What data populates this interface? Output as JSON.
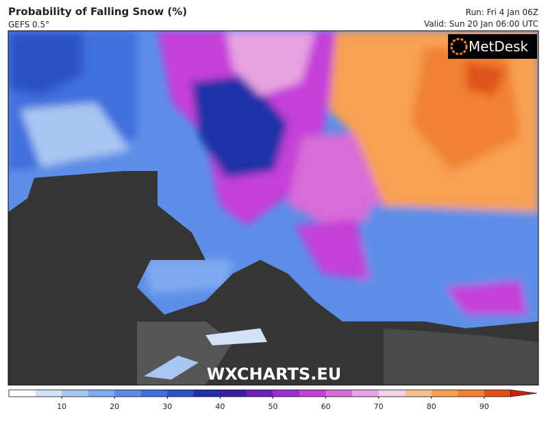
{
  "header": {
    "title": "Probability of Falling Snow (%)",
    "subtitle": "GEFS 0.5°",
    "run": "Run: Fri 4 Jan 06Z",
    "valid": "Valid: Sun 20 Jan 06:00 UTC"
  },
  "logo": "MetDesk",
  "watermark": "WXCHARTS.EU",
  "colorbar": {
    "lim": [
      0,
      100
    ],
    "ticks": [
      10,
      20,
      30,
      40,
      50,
      60,
      70,
      80,
      90
    ],
    "colors": [
      "#ffffff",
      "#d4e1f6",
      "#a9c6f2",
      "#80aaf0",
      "#5c8ee8",
      "#3f70dc",
      "#2c52c8",
      "#1f30a8",
      "#3b1fa0",
      "#6a22b8",
      "#9a30d0",
      "#c440d8",
      "#d86cd8",
      "#e8a2e2",
      "#f2d2ea",
      "#f8c08c",
      "#f8a052",
      "#f08232",
      "#e0521a",
      "#c82412"
    ]
  }
}
